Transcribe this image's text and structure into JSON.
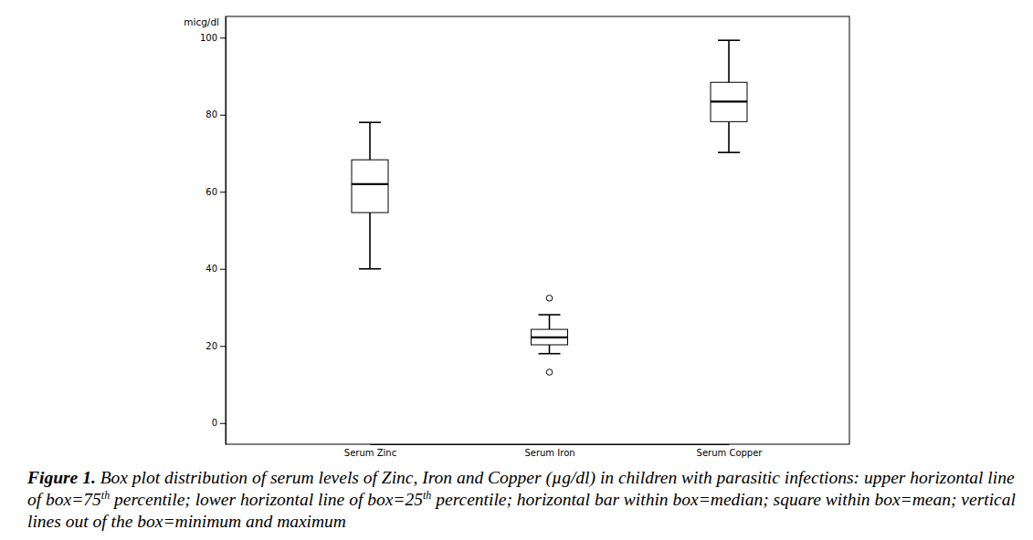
{
  "chart_data": {
    "type": "box",
    "y_label": "micg/dl",
    "categories": [
      "Serum Zinc",
      "Serum Iron",
      "Serum Copper"
    ],
    "boxes": [
      {
        "min": 40,
        "q1": 54.6,
        "median": 62,
        "q3": 68.3,
        "max": 78
      },
      {
        "min": 18,
        "q1": 20.3,
        "median": 22.2,
        "q3": 24.3,
        "max": 28.1,
        "outliers": [
          32.4,
          13.2
        ]
      },
      {
        "min": 70.2,
        "q1": 78.2,
        "median": 83.4,
        "q3": 88.4,
        "max": 99.3
      }
    ],
    "color": "#ffffff",
    "ylim": [
      -5.5,
      105.5
    ],
    "yticks": [
      0,
      20,
      40,
      60,
      80,
      100
    ],
    "grid": false,
    "caption": {
      "label": "Figure 1.",
      "parts": [
        {
          "text": " Box plot distribution of serum levels of Zinc, Iron and Copper (µg/dl) in children with parasitic infections: upper horizontal line of box=75"
        },
        {
          "sup": "th"
        },
        {
          "text": " percentile; lower horizontal line of box=25"
        },
        {
          "sup": "th"
        },
        {
          "text": " percentile; horizontal bar within box=median; square within box=mean; vertical lines out of the box=minimum and maximum"
        }
      ]
    }
  }
}
